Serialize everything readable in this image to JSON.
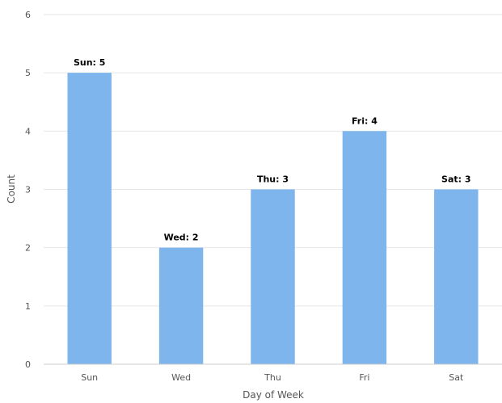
{
  "chart_data": {
    "type": "bar",
    "categories": [
      "Sun",
      "Wed",
      "Thu",
      "Fri",
      "Sat"
    ],
    "values": [
      5,
      2,
      3,
      4,
      3
    ],
    "data_labels": [
      "Sun: 5",
      "Wed: 2",
      "Thu: 3",
      "Fri: 4",
      "Sat: 3"
    ],
    "title": "",
    "xlabel": "Day of Week",
    "ylabel": "Count",
    "ylim": [
      0,
      6
    ],
    "yticks": [
      0,
      1,
      2,
      3,
      4,
      5,
      6
    ],
    "grid": true,
    "bar_color": "#7eb5ec",
    "legend": "none"
  }
}
